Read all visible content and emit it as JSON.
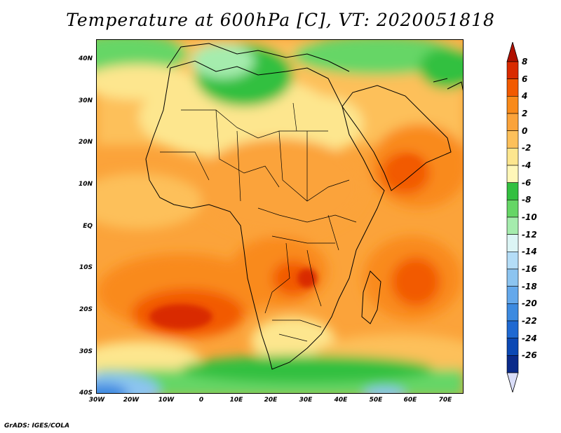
{
  "title": "Temperature at 600hPa [C], VT: 2020051818",
  "credit": "GrADS: IGES/COLA",
  "map": {
    "lat_ticks": [
      "40N",
      "30N",
      "20N",
      "10N",
      "EQ",
      "10S",
      "20S",
      "30S",
      "40S"
    ],
    "lon_ticks": [
      "30W",
      "20W",
      "10W",
      "0",
      "10E",
      "20E",
      "30E",
      "40E",
      "50E",
      "60E",
      "70E"
    ]
  },
  "colorbar": {
    "labels": [
      "8",
      "6",
      "4",
      "2",
      "0",
      "-2",
      "-4",
      "-6",
      "-8",
      "-10",
      "-12",
      "-14",
      "-16",
      "-18",
      "-20",
      "-22",
      "-24",
      "-26"
    ],
    "colors": [
      "#d92a00",
      "#f25a00",
      "#f98a1a",
      "#fba33a",
      "#fdc05a",
      "#fde68e",
      "#fff7b8",
      "#33c040",
      "#66d666",
      "#a5ecad",
      "#dcf5f5",
      "#b4ddf7",
      "#8cc4f0",
      "#64a8eb",
      "#3c8ae0",
      "#1f69d2",
      "#0b48b4",
      "#0a2a8a"
    ],
    "top_arrow_color": "#b01000",
    "bottom_arrow_color": "#d9ddf8"
  }
}
